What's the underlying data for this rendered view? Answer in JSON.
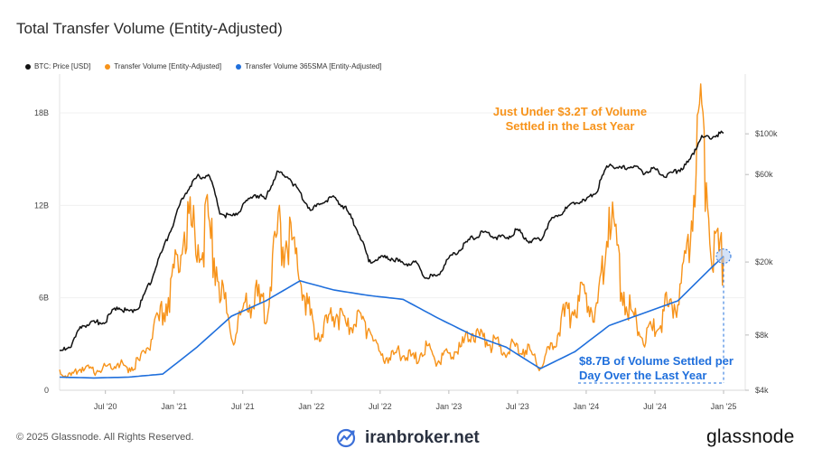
{
  "chart_data": {
    "type": "line",
    "title": "Total Transfer Volume (Entity-Adjusted)",
    "x_ticks": [
      "Jul '20",
      "Jan '21",
      "Jul '21",
      "Jan '22",
      "Jul '22",
      "Jan '23",
      "Jul '23",
      "Jan '24",
      "Jul '24",
      "Jan '25"
    ],
    "x_range": [
      "2020-03",
      "2025-01"
    ],
    "left_axis": {
      "ticks": [
        "0",
        "6B",
        "12B",
        "18B"
      ],
      "ylim": [
        0,
        18
      ]
    },
    "right_axis": {
      "scale": "log",
      "ticks": [
        "$4k",
        "$8k",
        "$20k",
        "$60k",
        "$100k"
      ],
      "ylim": [
        4000,
        130000
      ]
    },
    "legend": {
      "placement": "top-left",
      "items": [
        "BTC: Price [USD]",
        "Transfer Volume [Entity-Adjusted]",
        "Transfer Volume 365SMA [Entity-Adjusted]"
      ]
    },
    "series": [
      {
        "name": "BTC: Price [USD]",
        "axis": "right",
        "color": "#111111",
        "x": [
          "2020-03",
          "2020-04",
          "2020-05",
          "2020-06",
          "2020-07",
          "2020-08",
          "2020-09",
          "2020-10",
          "2020-11",
          "2020-12",
          "2021-01",
          "2021-02",
          "2021-03",
          "2021-04",
          "2021-05",
          "2021-06",
          "2021-07",
          "2021-08",
          "2021-09",
          "2021-10",
          "2021-11",
          "2021-12",
          "2022-01",
          "2022-02",
          "2022-03",
          "2022-04",
          "2022-05",
          "2022-06",
          "2022-07",
          "2022-08",
          "2022-09",
          "2022-10",
          "2022-11",
          "2022-12",
          "2023-01",
          "2023-02",
          "2023-03",
          "2023-04",
          "2023-05",
          "2023-06",
          "2023-07",
          "2023-08",
          "2023-09",
          "2023-10",
          "2023-11",
          "2023-12",
          "2024-01",
          "2024-02",
          "2024-03",
          "2024-04",
          "2024-05",
          "2024-06",
          "2024-07",
          "2024-08",
          "2024-09",
          "2024-10",
          "2024-11",
          "2024-12",
          "2025-01"
        ],
        "values": [
          6400,
          7000,
          9000,
          9300,
          9500,
          11500,
          10600,
          11500,
          16000,
          23000,
          33000,
          48000,
          58000,
          60000,
          37000,
          35000,
          40000,
          47000,
          44000,
          61000,
          58000,
          47000,
          38000,
          43000,
          45000,
          39000,
          30000,
          20000,
          21000,
          21000,
          19500,
          20000,
          16500,
          16800,
          21000,
          23500,
          27000,
          29000,
          27500,
          27000,
          30000,
          26000,
          26500,
          34000,
          37500,
          42500,
          43000,
          50000,
          69000,
          64000,
          67000,
          62000,
          64000,
          59000,
          63000,
          70000,
          95000,
          97000,
          101000
        ]
      },
      {
        "name": "Transfer Volume [Entity-Adjusted]",
        "axis": "left",
        "color": "#f7931a",
        "x": [
          "2020-03",
          "2020-04",
          "2020-05",
          "2020-06",
          "2020-07",
          "2020-08",
          "2020-09",
          "2020-10",
          "2020-11",
          "2020-12",
          "2021-01",
          "2021-02",
          "2021-03",
          "2021-04",
          "2021-05",
          "2021-06",
          "2021-07",
          "2021-08",
          "2021-09",
          "2021-10",
          "2021-11",
          "2021-12",
          "2022-01",
          "2022-02",
          "2022-03",
          "2022-04",
          "2022-05",
          "2022-06",
          "2022-07",
          "2022-08",
          "2022-09",
          "2022-10",
          "2022-11",
          "2022-12",
          "2023-01",
          "2023-02",
          "2023-03",
          "2023-04",
          "2023-05",
          "2023-06",
          "2023-07",
          "2023-08",
          "2023-09",
          "2023-10",
          "2023-11",
          "2023-12",
          "2024-01",
          "2024-02",
          "2024-03",
          "2024-04",
          "2024-05",
          "2024-06",
          "2024-07",
          "2024-08",
          "2024-09",
          "2024-10",
          "2024-11",
          "2024-12",
          "2025-01"
        ],
        "values": [
          1.2,
          0.9,
          1.5,
          1.2,
          1.5,
          1.8,
          1.4,
          1.9,
          3.3,
          5.0,
          7.4,
          11.0,
          9.8,
          10.5,
          7.2,
          3.5,
          4.8,
          6.1,
          5.2,
          9.8,
          10.0,
          7.5,
          4.4,
          3.7,
          5.2,
          3.9,
          4.6,
          4.2,
          2.1,
          2.2,
          2.5,
          2.0,
          2.8,
          1.9,
          2.3,
          2.7,
          3.7,
          3.4,
          3.0,
          2.6,
          2.9,
          2.6,
          1.5,
          2.9,
          4.7,
          5.5,
          6.1,
          5.0,
          12.2,
          7.0,
          5.0,
          3.2,
          4.0,
          5.3,
          5.8,
          9.5,
          18.3,
          9.0,
          8.7
        ]
      },
      {
        "name": "Transfer Volume 365SMA [Entity-Adjusted]",
        "axis": "left",
        "color": "#1f6fdc",
        "x": [
          "2020-03",
          "2020-06",
          "2020-09",
          "2020-12",
          "2021-03",
          "2021-06",
          "2021-09",
          "2021-12",
          "2022-03",
          "2022-06",
          "2022-09",
          "2022-12",
          "2023-03",
          "2023-06",
          "2023-09",
          "2023-12",
          "2024-03",
          "2024-06",
          "2024-09",
          "2024-12",
          "2025-01"
        ],
        "values": [
          0.85,
          0.8,
          0.85,
          1.05,
          2.8,
          4.8,
          5.8,
          7.1,
          6.5,
          6.15,
          5.9,
          4.7,
          3.6,
          2.8,
          1.4,
          2.5,
          4.2,
          5.0,
          5.8,
          8.0,
          8.7
        ]
      }
    ],
    "annotations": [
      {
        "text": "Just Under $3.2T of Volume\nSettled in the Last Year",
        "color": "#f7931a"
      },
      {
        "text": "$8.7B of Volume Settled per\nDay Over the Last Year",
        "color": "#1f6fdc"
      }
    ]
  },
  "footer": {
    "copyright": "© 2025 Glassnode. All Rights Reserved.",
    "watermark": "iranbroker.net",
    "brand": "glassnode"
  },
  "colors": {
    "price": "#111111",
    "volume": "#f7931a",
    "sma": "#1f6fdc",
    "grid": "#ececec"
  }
}
